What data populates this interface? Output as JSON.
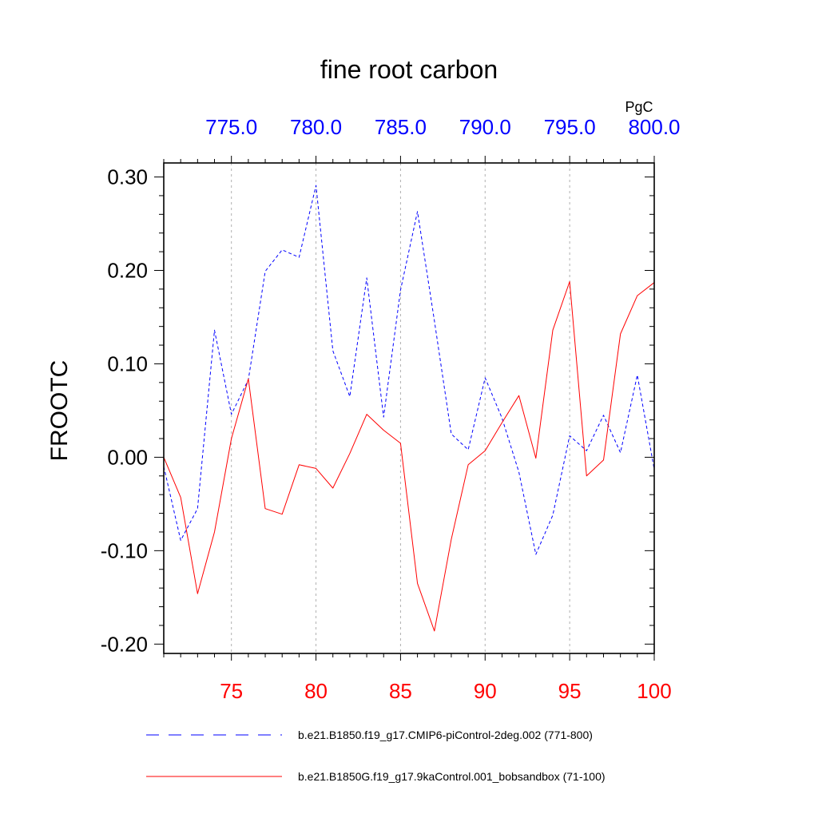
{
  "chart_data": {
    "type": "line",
    "title": "fine root carbon",
    "ylabel": "FROOTC",
    "units": "PgC",
    "ylim": [
      -0.21,
      0.315
    ],
    "yticks": [
      "0.30",
      "0.20",
      "0.10",
      "0.00",
      "-0.10",
      "-0.20"
    ],
    "ytick_values": [
      0.3,
      0.2,
      0.1,
      0.0,
      -0.1,
      -0.2
    ],
    "bottom_axis": {
      "xlim": [
        71,
        100
      ],
      "ticks": [
        "75",
        "80",
        "85",
        "90",
        "95",
        "100"
      ],
      "tick_values": [
        75,
        80,
        85,
        90,
        95,
        100
      ],
      "color": "#ff0000"
    },
    "top_axis": {
      "xlim": [
        771,
        800
      ],
      "ticks": [
        "775.0",
        "780.0",
        "785.0",
        "790.0",
        "795.0",
        "800.0"
      ],
      "tick_values": [
        775,
        780,
        785,
        790,
        795,
        800
      ],
      "color": "#0000ff"
    },
    "grid": "vertical dashed at major ticks",
    "series": [
      {
        "name": "b.e21.B1850.f19_g17.CMIP6-piControl-2deg.002 (771-800)",
        "axis": "top",
        "style": "dashed",
        "color": "#0000ff",
        "x": [
          771,
          772,
          773,
          774,
          775,
          776,
          777,
          778,
          779,
          780,
          781,
          782,
          783,
          784,
          785,
          786,
          787,
          788,
          789,
          790,
          791,
          792,
          793,
          794,
          795,
          796,
          797,
          798,
          799,
          800
        ],
        "values": [
          -0.01,
          -0.089,
          -0.055,
          0.136,
          0.046,
          0.083,
          0.199,
          0.222,
          0.214,
          0.291,
          0.114,
          0.065,
          0.192,
          0.043,
          0.179,
          0.263,
          0.146,
          0.025,
          0.008,
          0.085,
          0.042,
          -0.016,
          -0.104,
          -0.062,
          0.023,
          0.007,
          0.045,
          0.005,
          0.088,
          -0.013
        ]
      },
      {
        "name": "b.e21.B1850G.f19_g17.9kaControl.001_bobsandbox (71-100)",
        "axis": "bottom",
        "style": "solid",
        "color": "#ff0000",
        "x": [
          71,
          72,
          73,
          74,
          75,
          76,
          77,
          78,
          79,
          80,
          81,
          82,
          83,
          84,
          85,
          86,
          87,
          88,
          89,
          90,
          91,
          92,
          93,
          94,
          95,
          96,
          97,
          98,
          99,
          100
        ],
        "values": [
          0.0,
          -0.043,
          -0.146,
          -0.08,
          0.02,
          0.084,
          -0.055,
          -0.061,
          -0.008,
          -0.012,
          -0.033,
          0.004,
          0.046,
          0.029,
          0.015,
          -0.135,
          -0.186,
          -0.088,
          -0.008,
          0.007,
          0.037,
          0.066,
          -0.001,
          0.136,
          0.188,
          -0.02,
          -0.003,
          0.132,
          0.173,
          0.187
        ]
      }
    ]
  }
}
